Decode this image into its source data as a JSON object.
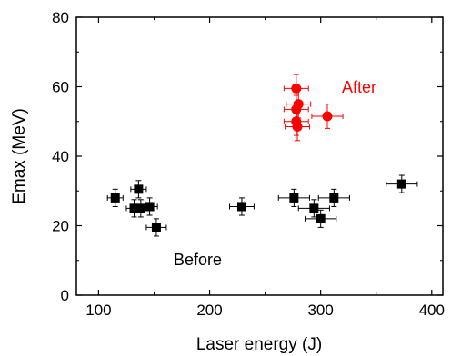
{
  "chart_data": {
    "type": "scatter",
    "xlabel": "Laser energy (J)",
    "ylabel": "Emax (MeV)",
    "xlim": [
      80,
      410
    ],
    "ylim": [
      0,
      80
    ],
    "x_ticks": [
      100,
      200,
      300,
      400
    ],
    "y_ticks": [
      0,
      20,
      40,
      60,
      80
    ],
    "x_tick_labels": [
      "100",
      "200",
      "300",
      "400"
    ],
    "y_tick_labels": [
      "0",
      "20",
      "40",
      "60",
      "80"
    ],
    "grid": false,
    "legend": "none",
    "annotations": [
      {
        "text": "Before",
        "color": "#000000"
      },
      {
        "text": "After",
        "color": "#ff0000"
      }
    ],
    "series": [
      {
        "marker": "square",
        "color": "#000000",
        "points": [
          {
            "x": 115,
            "y": 28.0,
            "xerr": 7,
            "yerr": 2.5
          },
          {
            "x": 132,
            "y": 25.0,
            "xerr": 7,
            "yerr": 2.5
          },
          {
            "x": 136,
            "y": 30.5,
            "xerr": 7,
            "yerr": 2.5
          },
          {
            "x": 138,
            "y": 25.0,
            "xerr": 7,
            "yerr": 2.5
          },
          {
            "x": 146,
            "y": 25.5,
            "xerr": 7,
            "yerr": 2.5
          },
          {
            "x": 152,
            "y": 19.5,
            "xerr": 9,
            "yerr": 2.5
          },
          {
            "x": 229,
            "y": 25.5,
            "xerr": 11,
            "yerr": 2.5
          },
          {
            "x": 276,
            "y": 28.0,
            "xerr": 14,
            "yerr": 2.5
          },
          {
            "x": 294,
            "y": 25.0,
            "xerr": 14,
            "yerr": 2.5
          },
          {
            "x": 300,
            "y": 22.0,
            "xerr": 14,
            "yerr": 2.5
          },
          {
            "x": 312,
            "y": 28.0,
            "xerr": 14,
            "yerr": 2.5
          },
          {
            "x": 373,
            "y": 32.0,
            "xerr": 14,
            "yerr": 2.5
          }
        ]
      },
      {
        "marker": "circle",
        "color": "#ff0000",
        "points": [
          {
            "x": 278,
            "y": 59.5,
            "xerr": 11,
            "yerr": 4
          },
          {
            "x": 280,
            "y": 55.0,
            "xerr": 11,
            "yerr": 4
          },
          {
            "x": 278,
            "y": 53.5,
            "xerr": 11,
            "yerr": 4
          },
          {
            "x": 278,
            "y": 50.0,
            "xerr": 11,
            "yerr": 4
          },
          {
            "x": 279,
            "y": 48.5,
            "xerr": 11,
            "yerr": 4
          },
          {
            "x": 306,
            "y": 51.5,
            "xerr": 14,
            "yerr": 3.5
          }
        ]
      }
    ]
  }
}
